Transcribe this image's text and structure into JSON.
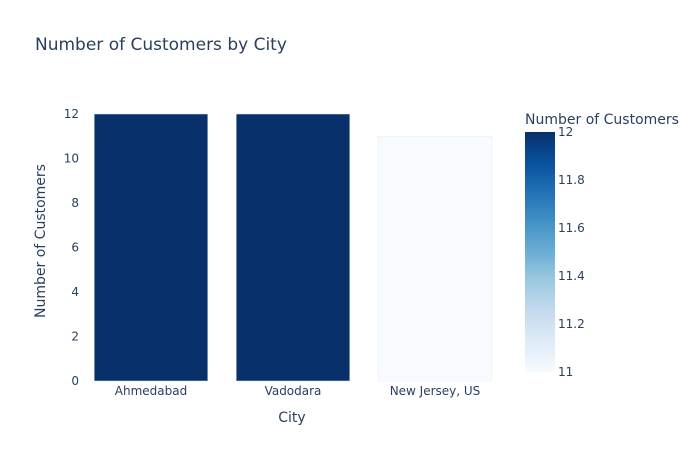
{
  "chart_data": {
    "type": "bar",
    "title": "Number of Customers by City",
    "xlabel": "City",
    "ylabel": "Number of Customers",
    "categories": [
      "Ahmedabad",
      "Vadodara",
      "New Jersey, US"
    ],
    "values": [
      12,
      12,
      11
    ],
    "ylim": [
      0,
      12
    ],
    "yticks": [
      "0",
      "2",
      "4",
      "6",
      "8",
      "10",
      "12"
    ],
    "grid": false,
    "colorbar": {
      "title": "Number of Customers",
      "range": [
        11,
        12
      ],
      "ticks": [
        "11",
        "11.2",
        "11.4",
        "11.6",
        "11.8",
        "12"
      ],
      "colorscale": "Blues",
      "color_low": "#f7fbff",
      "color_high": "#08306b"
    }
  }
}
